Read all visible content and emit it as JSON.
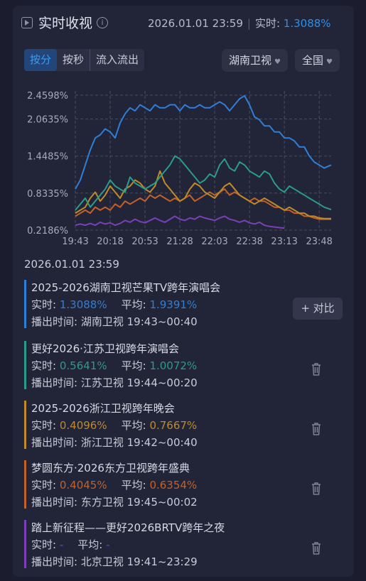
{
  "header": {
    "title": "实时收视",
    "info_symbol": "i",
    "datetime": "2026.01.01 23:59",
    "realtime_label": "实时:",
    "realtime_value": "1.3088%"
  },
  "tabs": [
    {
      "label": "按分",
      "active": true
    },
    {
      "label": "按秒",
      "active": false
    },
    {
      "label": "流入流出",
      "active": false
    }
  ],
  "dropdowns": {
    "channel": "湖南卫视",
    "region": "全国",
    "caret": "♥"
  },
  "chart_data": {
    "type": "line",
    "y_ticks": [
      "2.4598%",
      "2.0635%",
      "1.4485%",
      "0.8335%",
      "0.2186%"
    ],
    "y_tick_values": [
      2.4598,
      2.0635,
      1.4485,
      0.8335,
      0.2186
    ],
    "x_ticks": [
      "19:43",
      "20:18",
      "20:53",
      "21:28",
      "22:03",
      "22:38",
      "23:13",
      "23:48"
    ],
    "x_tick_minutes": [
      0,
      35,
      70,
      105,
      140,
      175,
      210,
      245
    ],
    "ylim": [
      0.2186,
      2.4598
    ],
    "x_range_minutes": [
      0,
      257
    ],
    "grid": true,
    "series": [
      {
        "name": "2025-2026湖南卫视芒果TV跨年演唱会",
        "color": "#2f7fd8",
        "x": [
          0,
          5,
          10,
          15,
          20,
          25,
          30,
          35,
          40,
          45,
          50,
          55,
          60,
          65,
          70,
          75,
          80,
          85,
          90,
          95,
          100,
          105,
          110,
          115,
          120,
          125,
          130,
          135,
          140,
          145,
          150,
          155,
          160,
          165,
          170,
          175,
          180,
          185,
          190,
          195,
          200,
          205,
          210,
          215,
          220,
          225,
          230,
          235,
          240,
          245,
          250,
          257
        ],
        "y": [
          0.9,
          1.05,
          1.3,
          1.55,
          1.75,
          1.8,
          1.9,
          1.85,
          1.75,
          2.0,
          2.15,
          2.25,
          2.2,
          2.3,
          2.25,
          2.2,
          2.3,
          2.25,
          2.25,
          2.3,
          2.3,
          2.2,
          2.3,
          2.25,
          2.25,
          2.3,
          2.25,
          2.25,
          2.3,
          2.35,
          2.3,
          2.2,
          2.3,
          2.4,
          2.45,
          2.3,
          2.1,
          2.05,
          1.95,
          1.95,
          1.85,
          1.85,
          1.75,
          1.75,
          1.7,
          1.6,
          1.6,
          1.45,
          1.35,
          1.3,
          1.25,
          1.3
        ]
      },
      {
        "name": "更好2026·江苏卫视跨年演唱会",
        "color": "#2a9b8c",
        "x": [
          0,
          5,
          10,
          15,
          20,
          25,
          30,
          35,
          40,
          45,
          50,
          55,
          60,
          65,
          70,
          75,
          80,
          85,
          90,
          95,
          100,
          105,
          110,
          115,
          120,
          125,
          130,
          135,
          140,
          145,
          150,
          155,
          160,
          165,
          170,
          175,
          180,
          185,
          190,
          195,
          200,
          205,
          210,
          215,
          220,
          225,
          230,
          235,
          240,
          245,
          250,
          257
        ],
        "y": [
          0.55,
          0.65,
          0.75,
          0.6,
          0.7,
          0.8,
          0.9,
          1.05,
          0.95,
          0.9,
          0.85,
          1.1,
          1.0,
          0.95,
          0.9,
          0.95,
          1.0,
          1.1,
          1.2,
          1.3,
          1.45,
          1.4,
          1.3,
          1.2,
          1.1,
          1.0,
          1.05,
          1.15,
          1.1,
          1.3,
          1.4,
          1.25,
          1.2,
          1.35,
          1.3,
          1.2,
          1.15,
          1.1,
          1.2,
          1.15,
          1.0,
          0.9,
          0.85,
          0.95,
          0.9,
          0.85,
          0.8,
          0.75,
          0.7,
          0.65,
          0.6,
          0.56
        ]
      },
      {
        "name": "2025-2026浙江卫视跨年晚会",
        "color": "#c08a2a",
        "x": [
          0,
          5,
          10,
          15,
          20,
          25,
          30,
          35,
          40,
          45,
          50,
          55,
          60,
          65,
          70,
          75,
          80,
          85,
          90,
          95,
          100,
          105,
          110,
          115,
          120,
          125,
          130,
          135,
          140,
          145,
          150,
          155,
          160,
          165,
          170,
          175,
          180,
          185,
          190,
          195,
          200,
          205,
          210,
          215,
          220,
          225,
          230,
          235,
          240,
          245,
          250,
          257
        ],
        "y": [
          0.5,
          0.55,
          0.6,
          0.75,
          0.85,
          0.7,
          0.8,
          0.95,
          0.85,
          0.75,
          0.9,
          0.95,
          1.05,
          1.0,
          0.9,
          0.85,
          0.95,
          1.2,
          1.0,
          0.9,
          0.8,
          0.7,
          0.75,
          0.9,
          1.0,
          0.95,
          0.85,
          0.8,
          0.75,
          0.85,
          0.95,
          1.0,
          0.9,
          0.8,
          0.75,
          0.7,
          0.65,
          0.7,
          0.75,
          0.7,
          0.65,
          0.6,
          0.55,
          0.6,
          0.55,
          0.5,
          0.5,
          0.45,
          0.45,
          0.42,
          0.41,
          0.41
        ]
      },
      {
        "name": "梦圆东方·2026东方卫视跨年盛典",
        "color": "#c4612a",
        "x": [
          0,
          5,
          10,
          15,
          20,
          25,
          30,
          35,
          40,
          45,
          50,
          55,
          60,
          65,
          70,
          75,
          80,
          85,
          90,
          95,
          100,
          105,
          110,
          115,
          120,
          125,
          130,
          135,
          140,
          145,
          150,
          155,
          160,
          165,
          170,
          175,
          180,
          185,
          190,
          195,
          200,
          205,
          210,
          215,
          220,
          225,
          230,
          235,
          240,
          245,
          250,
          257
        ],
        "y": [
          0.45,
          0.5,
          0.55,
          0.5,
          0.6,
          0.55,
          0.6,
          0.55,
          0.65,
          0.6,
          0.7,
          0.65,
          0.7,
          0.75,
          0.7,
          0.8,
          0.75,
          0.8,
          0.75,
          0.7,
          0.75,
          0.7,
          0.75,
          0.8,
          0.7,
          0.75,
          0.8,
          0.85,
          0.8,
          0.85,
          0.9,
          0.8,
          0.85,
          0.8,
          0.75,
          0.7,
          0.75,
          0.7,
          0.7,
          0.65,
          0.6,
          0.6,
          0.55,
          0.55,
          0.5,
          0.5,
          0.45,
          0.45,
          0.42,
          0.4,
          0.4,
          0.4
        ]
      },
      {
        "name": "踏上新征程——更好2026BRTV跨年之夜",
        "color": "#7b3fb8",
        "x": [
          0,
          5,
          10,
          15,
          20,
          25,
          30,
          35,
          40,
          45,
          50,
          55,
          60,
          65,
          70,
          75,
          80,
          85,
          90,
          95,
          100,
          105,
          110,
          115,
          120,
          125,
          130,
          135,
          140,
          145,
          150,
          155,
          160,
          165,
          170,
          175,
          180,
          185,
          190,
          195,
          200,
          205,
          210
        ],
        "y": [
          0.3,
          0.32,
          0.3,
          0.33,
          0.3,
          0.35,
          0.32,
          0.34,
          0.3,
          0.33,
          0.38,
          0.35,
          0.4,
          0.36,
          0.34,
          0.38,
          0.42,
          0.38,
          0.35,
          0.4,
          0.45,
          0.4,
          0.38,
          0.42,
          0.4,
          0.45,
          0.42,
          0.4,
          0.38,
          0.42,
          0.45,
          0.4,
          0.38,
          0.35,
          0.38,
          0.34,
          0.32,
          0.35,
          0.3,
          0.28,
          0.27,
          0.26,
          0.25
        ]
      }
    ]
  },
  "time_label": "2026.01.01 23:59",
  "items": [
    {
      "title": "2025-2026湖南卫视芒果TV跨年演唱会",
      "color": "#2f7fd8",
      "realtime_label": "实时:",
      "realtime": "1.3088%",
      "avg_label": "平均:",
      "avg": "1.9391%",
      "air_label": "播出时间:",
      "channel": "湖南卫视",
      "time": "19:43~00:40",
      "action": "compare",
      "action_label": "+ 对比"
    },
    {
      "title": "更好2026·江苏卫视跨年演唱会",
      "color": "#2a9b8c",
      "realtime_label": "实时:",
      "realtime": "0.5641%",
      "avg_label": "平均:",
      "avg": "1.0072%",
      "air_label": "播出时间:",
      "channel": "江苏卫视",
      "time": "19:44~00:20",
      "action": "delete"
    },
    {
      "title": "2025-2026浙江卫视跨年晚会",
      "color": "#c08a2a",
      "realtime_label": "实时:",
      "realtime": "0.4096%",
      "avg_label": "平均:",
      "avg": "0.7667%",
      "air_label": "播出时间:",
      "channel": "浙江卫视",
      "time": "19:42~00:40",
      "action": "delete"
    },
    {
      "title": "梦圆东方·2026东方卫视跨年盛典",
      "color": "#c4612a",
      "realtime_label": "实时:",
      "realtime": "0.4045%",
      "avg_label": "平均:",
      "avg": "0.6354%",
      "air_label": "播出时间:",
      "channel": "东方卫视",
      "time": "19:45~00:02",
      "action": "delete"
    },
    {
      "title": "踏上新征程——更好2026BRTV跨年之夜",
      "color": "#7b3fb8",
      "realtime_label": "实时:",
      "realtime": "-",
      "avg_label": "平均:",
      "avg": "-",
      "air_label": "播出时间:",
      "channel": "北京卫视",
      "time": "19:41~23:29",
      "action": "delete"
    }
  ]
}
